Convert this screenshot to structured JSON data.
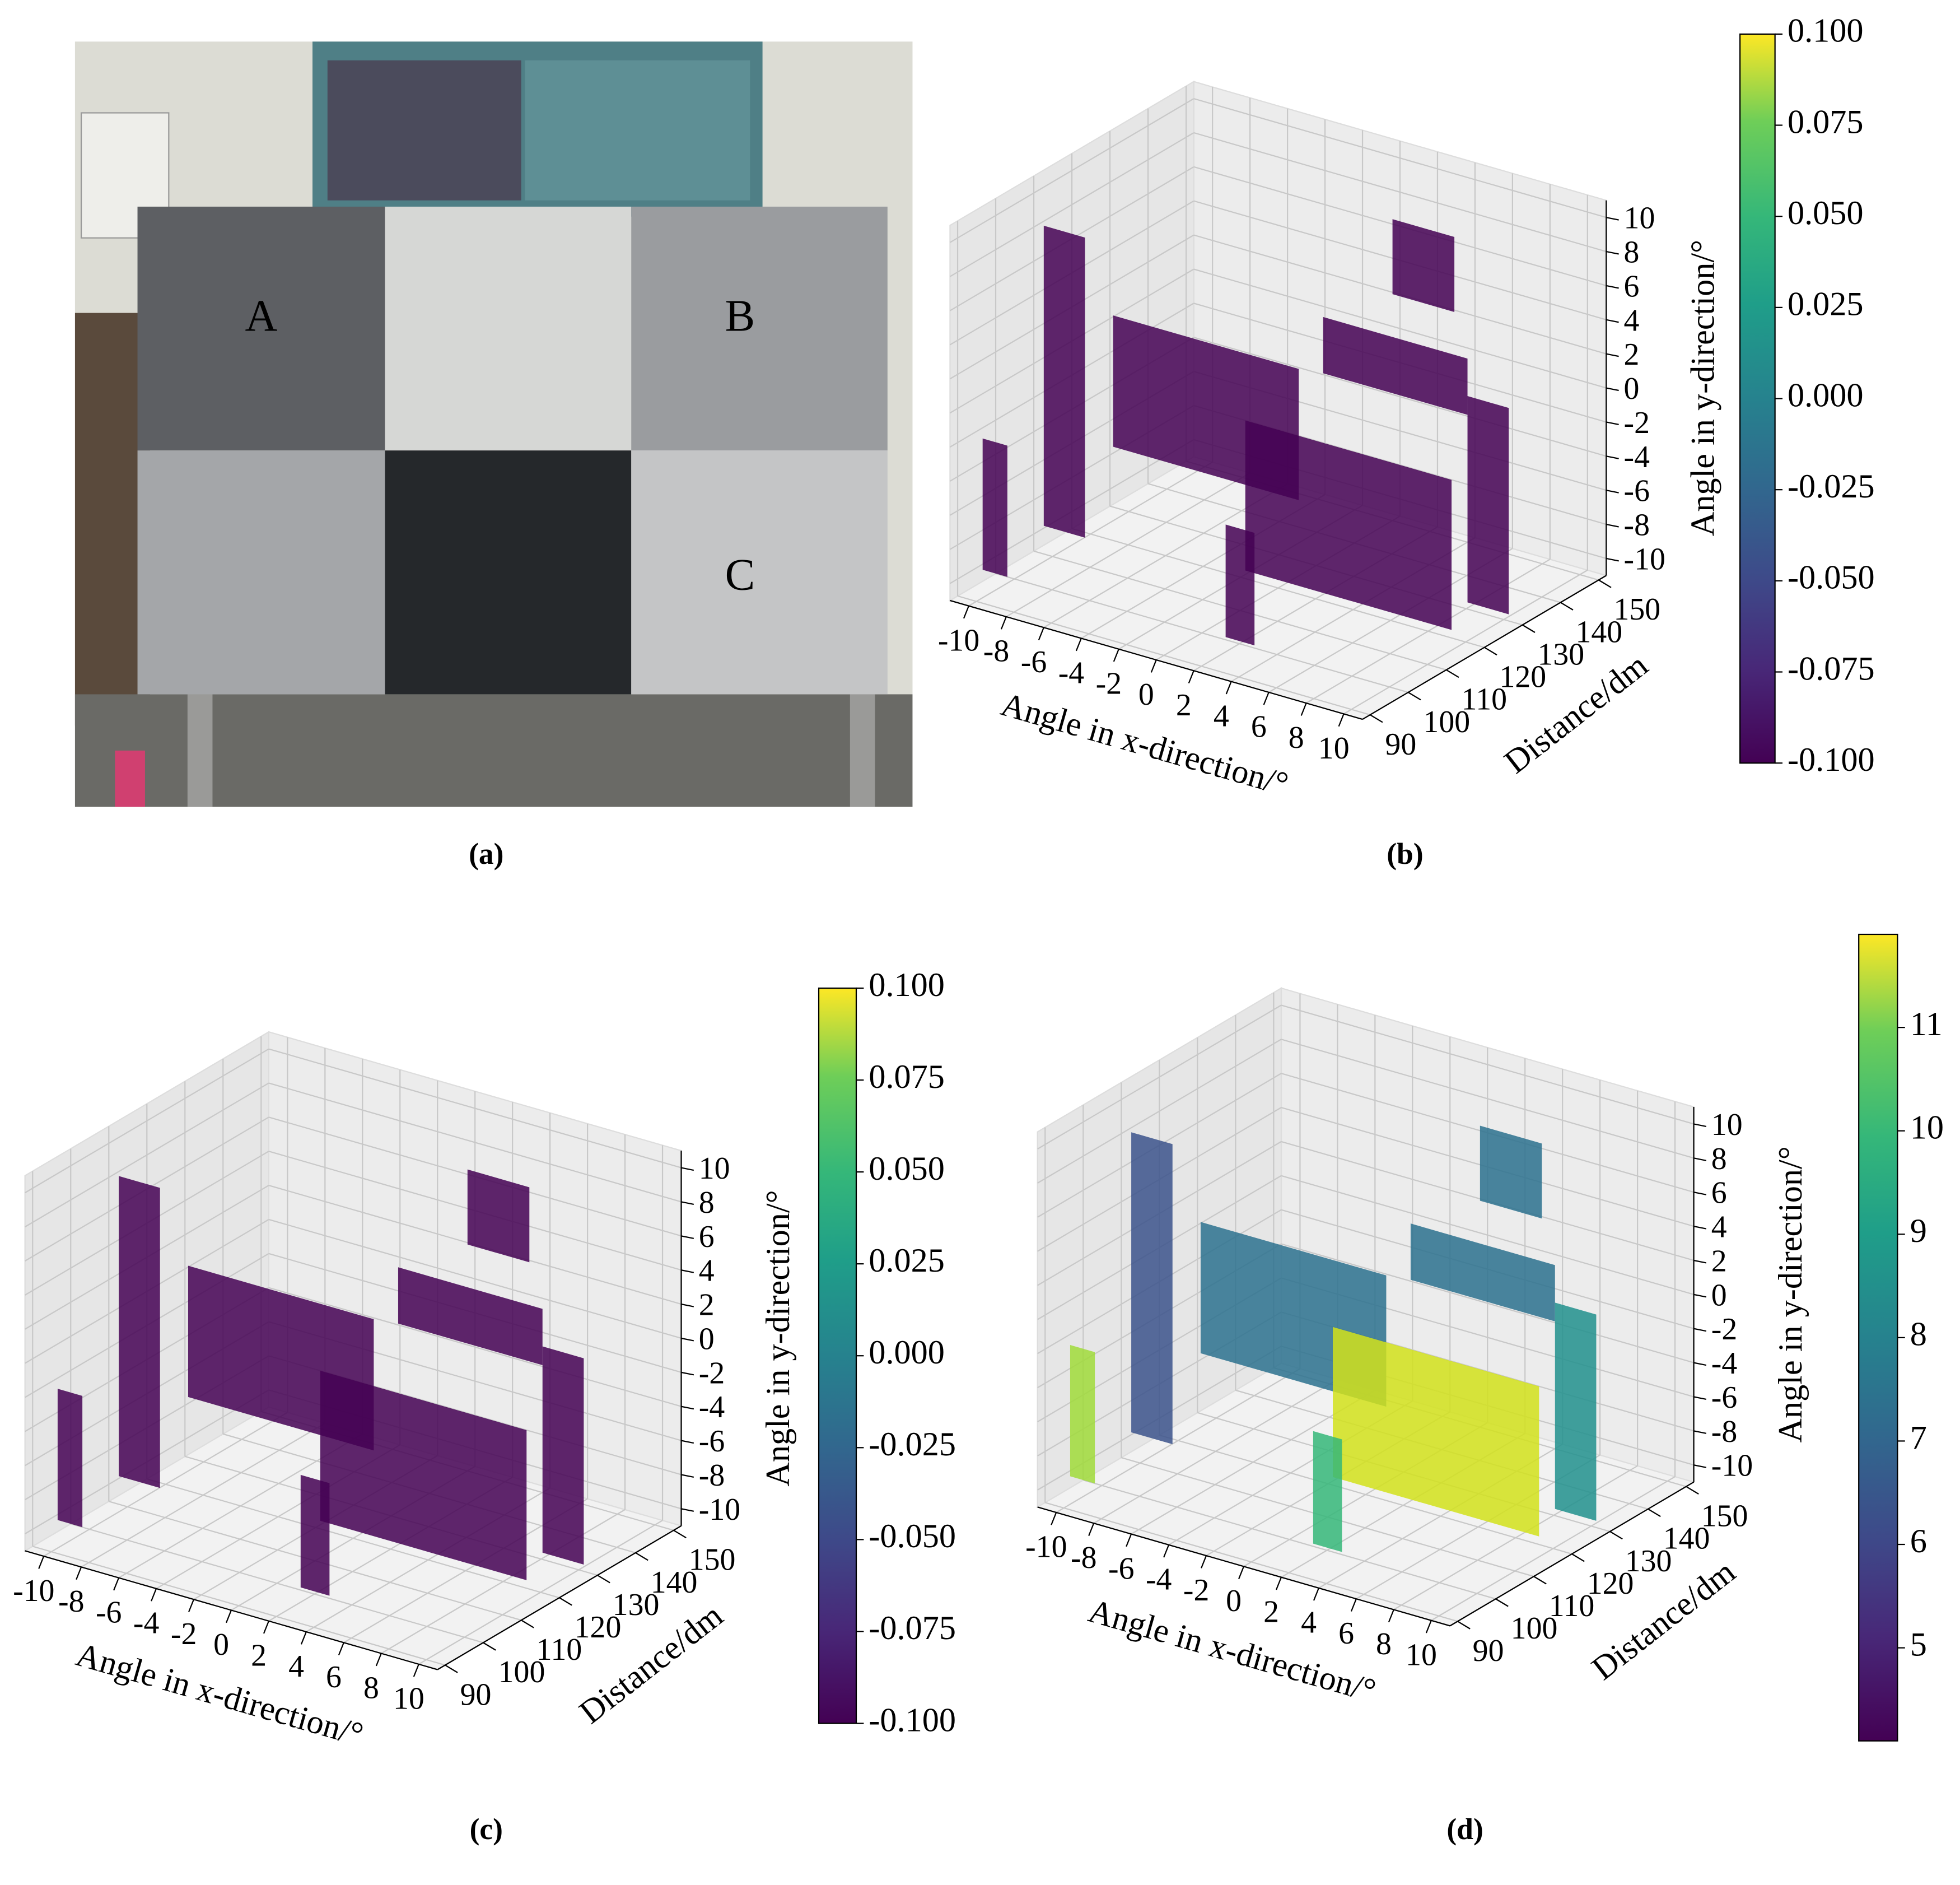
{
  "photo": {
    "labels": [
      "A",
      "B",
      "C"
    ],
    "caption": "(a)"
  },
  "chart_data": [
    {
      "type": "scatter3d",
      "caption": "(b)",
      "xlabel": "Angle in x-direction/°",
      "ylabel": "Distance/dm",
      "zlabel": "Angle in y-direction/°",
      "xlim": [
        -11,
        11
      ],
      "xticks": [
        -10,
        -8,
        -6,
        -4,
        -2,
        0,
        2,
        4,
        6,
        8,
        10
      ],
      "ylim": [
        88,
        152
      ],
      "yticks": [
        90,
        100,
        110,
        120,
        130,
        140,
        150
      ],
      "zlim": [
        -11,
        11
      ],
      "zticks": [
        -10,
        -8,
        -6,
        -4,
        -2,
        0,
        2,
        4,
        6,
        8,
        10
      ],
      "colorbar": {
        "lim": [
          -0.1,
          0.1
        ],
        "ticks": [
          {
            "value": -0.1,
            "label": "-0.100"
          },
          {
            "value": -0.075,
            "label": "-0.075"
          },
          {
            "value": -0.05,
            "label": "-0.050"
          },
          {
            "value": -0.025,
            "label": "-0.025"
          },
          {
            "value": 0,
            "label": "0.000"
          },
          0.025,
          {
            "value": 0.05,
            "label": "0.050"
          },
          0.075,
          {
            "value": 0.1,
            "label": "0.100"
          }
        ]
      }
    },
    {
      "type": "scatter3d",
      "caption": "(c)",
      "xlabel": "Angle in x-direction/°",
      "ylabel": "Distance/dm",
      "zlabel": "Angle in y-direction/°",
      "xlim": [
        -11,
        11
      ],
      "xticks": [
        -10,
        -8,
        -6,
        -4,
        -2,
        0,
        2,
        4,
        6,
        8,
        10
      ],
      "ylim": [
        88,
        152
      ],
      "yticks": [
        90,
        100,
        110,
        120,
        130,
        140,
        150
      ],
      "zlim": [
        -11,
        11
      ],
      "zticks": [
        -10,
        -8,
        -6,
        -4,
        -2,
        0,
        2,
        4,
        6,
        8,
        10
      ],
      "colorbar": {
        "lim": [
          -0.1,
          0.1
        ],
        "ticks": [
          {
            "value": -0.1,
            "label": "-0.100"
          },
          {
            "value": -0.075,
            "label": "-0.075"
          },
          {
            "value": -0.05,
            "label": "-0.050"
          },
          {
            "value": -0.025,
            "label": "-0.025"
          },
          {
            "value": 0,
            "label": "0.000"
          },
          0.025,
          {
            "value": 0.05,
            "label": "0.050"
          },
          0.075,
          {
            "value": 0.1,
            "label": "0.100"
          }
        ]
      }
    },
    {
      "type": "scatter3d",
      "caption": "(d)",
      "xlabel": "Angle in x-direction/°",
      "ylabel": "Distance/dm",
      "zlabel": "Angle in y-direction/°",
      "xlim": [
        -11,
        11
      ],
      "xticks": [
        -10,
        -8,
        -6,
        -4,
        -2,
        0,
        2,
        4,
        6,
        8,
        10
      ],
      "ylim": [
        88,
        152
      ],
      "yticks": [
        90,
        100,
        110,
        120,
        130,
        140,
        150
      ],
      "zlim": [
        -11,
        11
      ],
      "zticks": [
        -10,
        -8,
        -6,
        -4,
        -2,
        0,
        2,
        4,
        6,
        8,
        10
      ],
      "colorbar": {
        "lim": [
          4.1,
          11.9
        ],
        "ticks": [
          5,
          6,
          7,
          8,
          9,
          10,
          11
        ]
      }
    }
  ]
}
